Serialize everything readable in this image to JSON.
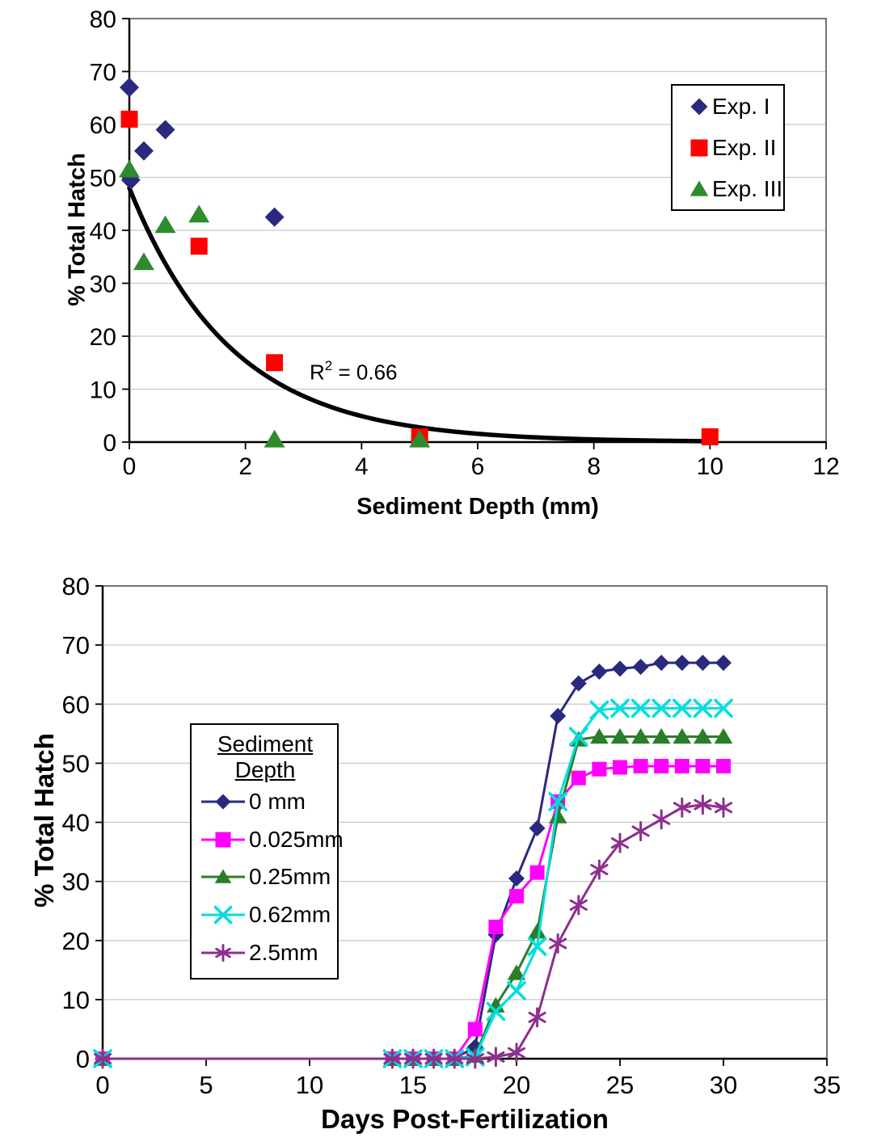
{
  "chart_data": [
    {
      "type": "scatter",
      "xlabel": "Sediment Depth (mm)",
      "ylabel": "% Total Hatch",
      "x_axis": {
        "min": 0,
        "max": 12,
        "ticks": [
          0,
          2,
          4,
          6,
          8,
          10,
          12
        ]
      },
      "y_axis": {
        "min": 0,
        "max": 80,
        "ticks": [
          0,
          10,
          20,
          30,
          40,
          50,
          60,
          70,
          80
        ]
      },
      "grid": "horizontal",
      "legend_position": "upper-right",
      "annotation": {
        "base": "R",
        "sup": "2",
        "rest": " = 0.66"
      },
      "trendline": {
        "type": "exponential",
        "a": 48,
        "k": 0.57,
        "x_start": 0,
        "x_end": 10,
        "color": "#000000"
      },
      "series": [
        {
          "name": "Exp. I",
          "marker": "diamond",
          "color": "#29297E",
          "points": [
            [
              0,
              67
            ],
            [
              0.025,
              49.5
            ],
            [
              0.25,
              55
            ],
            [
              0.62,
              59
            ],
            [
              2.5,
              42.5
            ]
          ]
        },
        {
          "name": "Exp. II",
          "marker": "square",
          "color": "#FF0000",
          "points": [
            [
              0,
              61
            ],
            [
              1.2,
              37
            ],
            [
              2.5,
              15
            ],
            [
              5,
              1
            ],
            [
              10,
              1
            ]
          ]
        },
        {
          "name": "Exp. III",
          "marker": "triangle",
          "color": "#2E8B2E",
          "points": [
            [
              0,
              51.5
            ],
            [
              0.25,
              34
            ],
            [
              0.62,
              41
            ],
            [
              1.2,
              43
            ],
            [
              2.5,
              0.5
            ],
            [
              5,
              0.5
            ]
          ]
        }
      ]
    },
    {
      "type": "line",
      "xlabel": "Days Post-Fertilization",
      "ylabel": "% Total Hatch",
      "x_axis": {
        "min": 0,
        "max": 35,
        "ticks": [
          0,
          5,
          10,
          15,
          20,
          25,
          30,
          35
        ]
      },
      "y_axis": {
        "min": 0,
        "max": 80,
        "ticks": [
          0,
          10,
          20,
          30,
          40,
          50,
          60,
          70,
          80
        ]
      },
      "grid": "horizontal",
      "legend_title": "Sediment Depth",
      "legend_position": "upper-left-inside",
      "x": [
        0,
        14,
        15,
        16,
        17,
        18,
        19,
        20,
        21,
        22,
        23,
        24,
        25,
        26,
        27,
        28,
        29,
        30
      ],
      "series": [
        {
          "name": "0 mm",
          "marker": "diamond",
          "color": "#29297E",
          "values": [
            0,
            0,
            0,
            0,
            0,
            2,
            21,
            30.5,
            39,
            58,
            63.5,
            65.5,
            66,
            66.3,
            67,
            67,
            67,
            67
          ]
        },
        {
          "name": "0.025mm",
          "marker": "square",
          "color": "#FF00FF",
          "values": [
            0,
            0,
            0,
            0,
            0,
            5,
            22.3,
            27.5,
            31.5,
            43.5,
            47.5,
            49,
            49.3,
            49.5,
            49.5,
            49.5,
            49.5,
            49.5
          ]
        },
        {
          "name": "0.25mm",
          "marker": "triangle",
          "color": "#2A7E2A",
          "values": [
            0,
            0,
            0,
            0,
            0,
            0.5,
            9,
            14.5,
            21.5,
            41,
            54,
            54.5,
            54.5,
            54.5,
            54.5,
            54.5,
            54.5,
            54.5
          ]
        },
        {
          "name": "0.62mm",
          "marker": "x",
          "color": "#00DEDE",
          "values": [
            0,
            0,
            0,
            0,
            0,
            0.3,
            8,
            11.5,
            19,
            43.5,
            54.5,
            59,
            59.3,
            59.3,
            59.3,
            59.3,
            59.3,
            59.3
          ]
        },
        {
          "name": "2.5mm",
          "marker": "star",
          "color": "#8E2F8E",
          "values": [
            0,
            0,
            0,
            0,
            0,
            0,
            0.3,
            1,
            7,
            19.5,
            26,
            32,
            36.5,
            38.5,
            40.5,
            42.5,
            43,
            42.5
          ]
        }
      ]
    }
  ]
}
